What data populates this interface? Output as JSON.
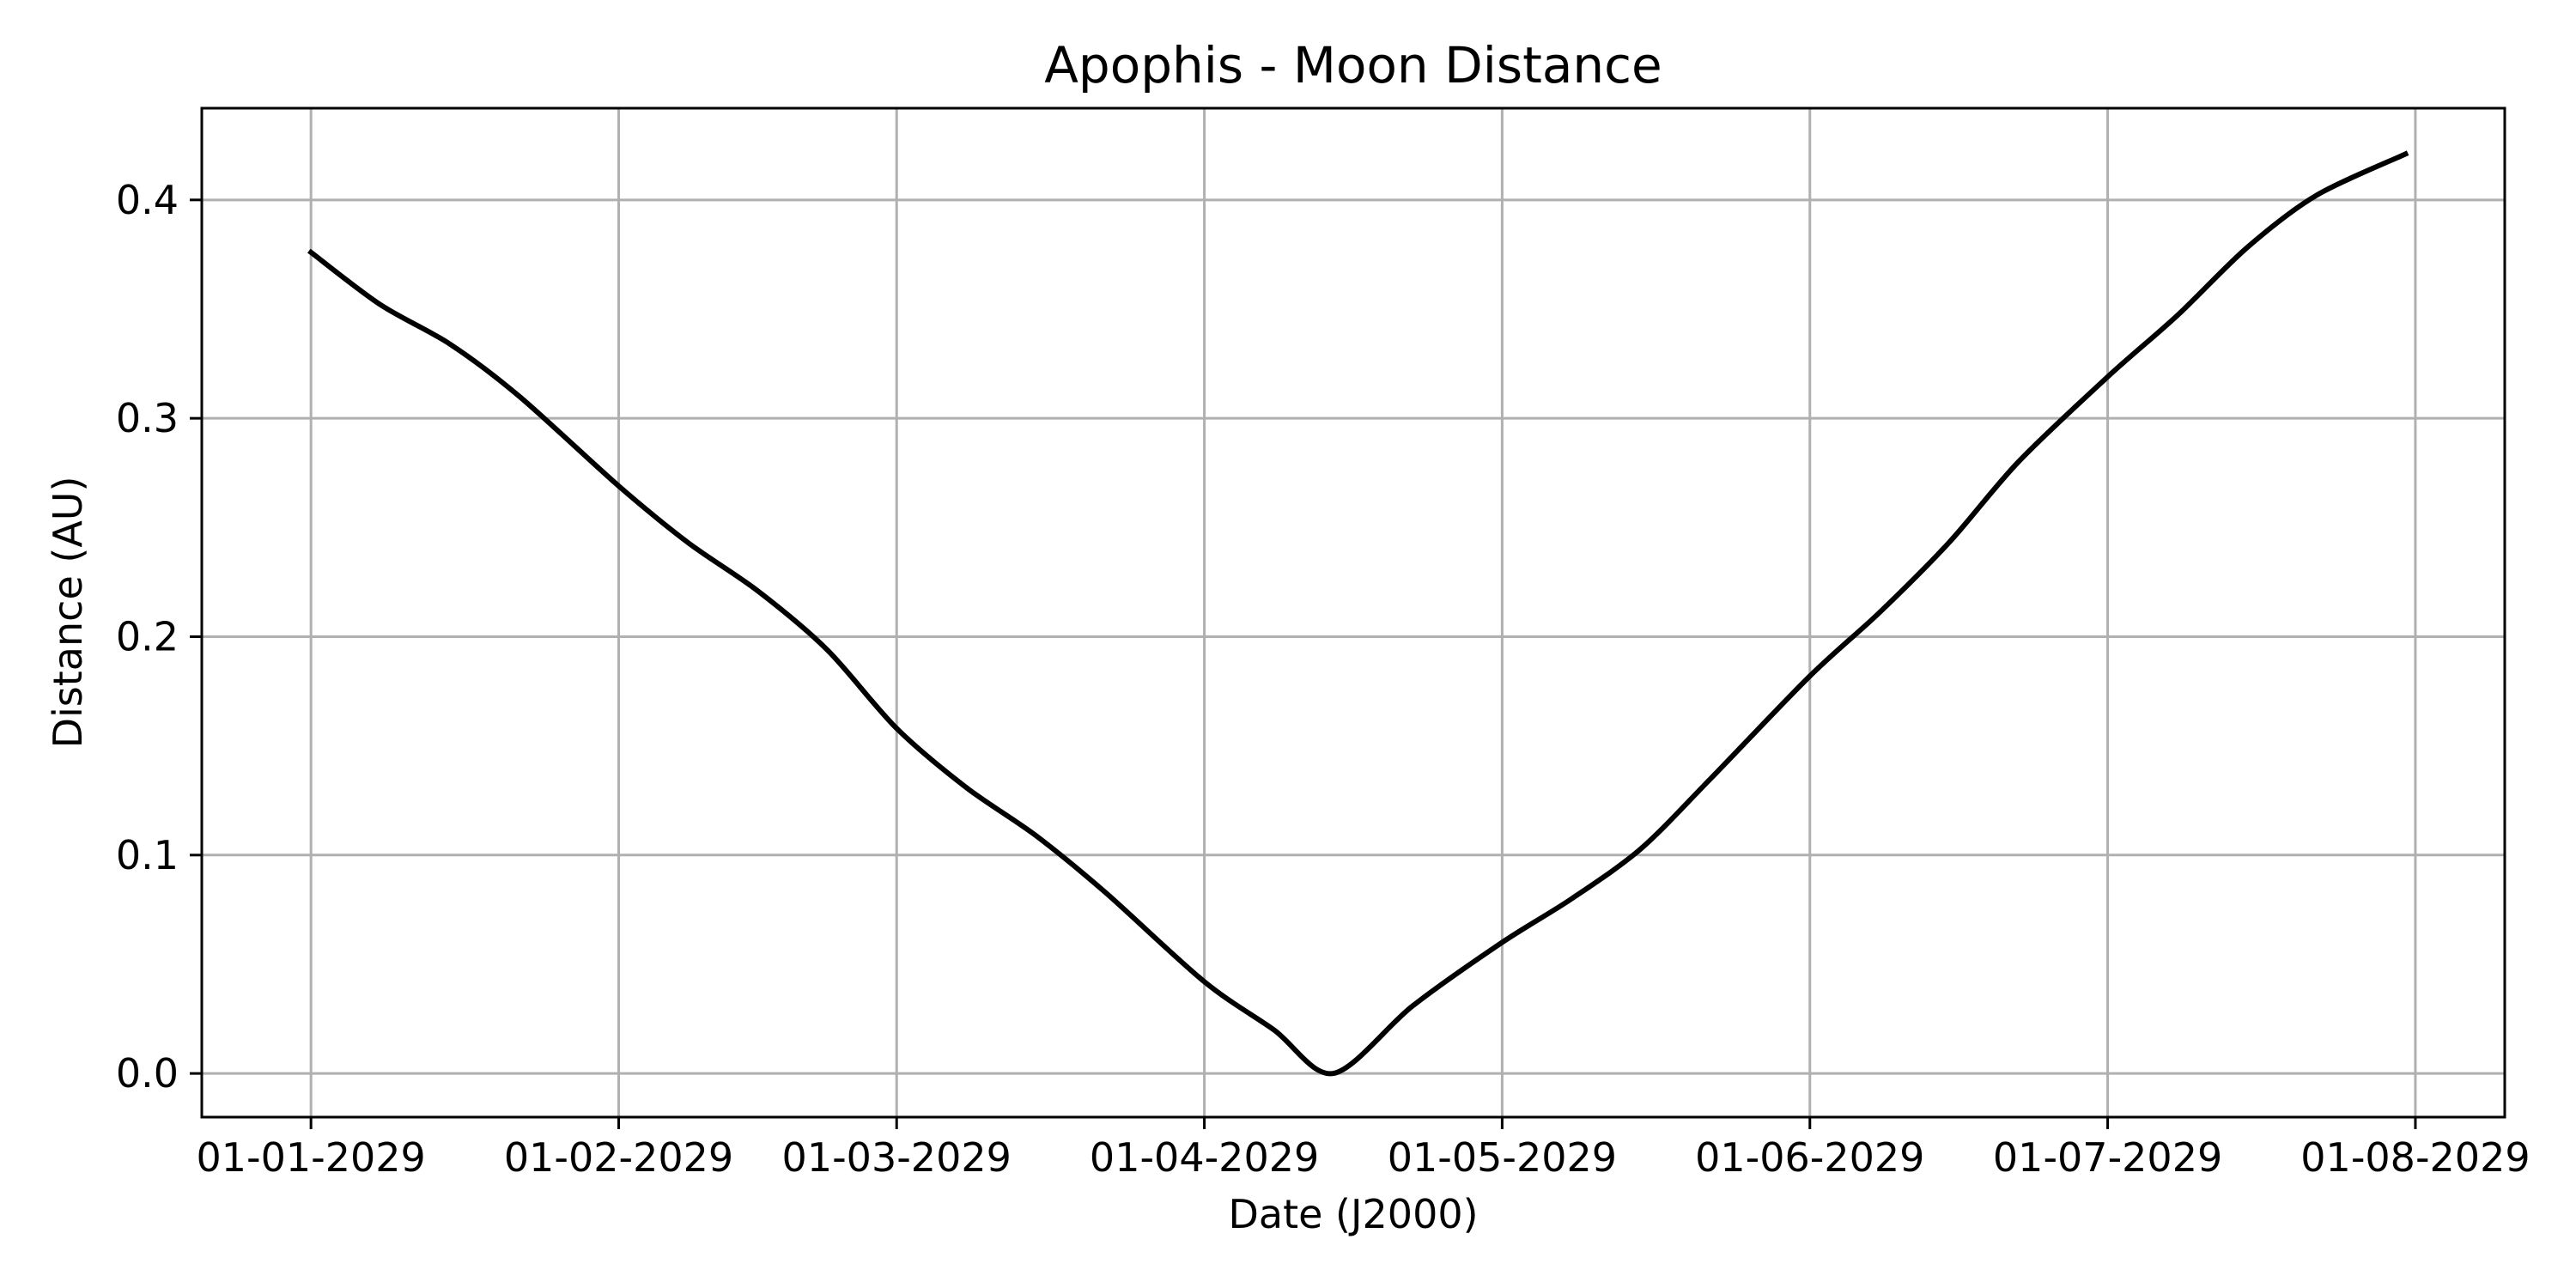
{
  "chart_data": {
    "type": "line",
    "title": "Apophis - Moon Distance",
    "xlabel": "Date (J2000)",
    "ylabel": "Distance (AU)",
    "xlim": [
      "2028-12-21",
      "2029-08-10"
    ],
    "ylim": [
      -0.02,
      0.442
    ],
    "grid": true,
    "x_ticks": [
      {
        "date": "2029-01-01",
        "label": "01-01-2029"
      },
      {
        "date": "2029-02-01",
        "label": "01-02-2029"
      },
      {
        "date": "2029-03-01",
        "label": "01-03-2029"
      },
      {
        "date": "2029-04-01",
        "label": "01-04-2029"
      },
      {
        "date": "2029-05-01",
        "label": "01-05-2029"
      },
      {
        "date": "2029-06-01",
        "label": "01-06-2029"
      },
      {
        "date": "2029-07-01",
        "label": "01-07-2029"
      },
      {
        "date": "2029-08-01",
        "label": "01-08-2029"
      }
    ],
    "y_ticks": [
      {
        "value": 0.0,
        "label": "0.0"
      },
      {
        "value": 0.1,
        "label": "0.1"
      },
      {
        "value": 0.2,
        "label": "0.2"
      },
      {
        "value": 0.3,
        "label": "0.3"
      },
      {
        "value": 0.4,
        "label": "0.4"
      }
    ],
    "series": [
      {
        "color": "#000000",
        "x": [
          "2029-01-01",
          "2029-01-08",
          "2029-01-15",
          "2029-01-22",
          "2029-02-01",
          "2029-02-08",
          "2029-02-15",
          "2029-02-22",
          "2029-03-01",
          "2029-03-08",
          "2029-03-15",
          "2029-03-22",
          "2029-04-01",
          "2029-04-08",
          "2029-04-14",
          "2029-04-22",
          "2029-05-01",
          "2029-05-08",
          "2029-05-15",
          "2029-05-22",
          "2029-06-01",
          "2029-06-08",
          "2029-06-15",
          "2029-06-22",
          "2029-07-01",
          "2029-07-08",
          "2029-07-15",
          "2029-07-22",
          "2029-07-31"
        ],
        "values": [
          0.376,
          0.352,
          0.334,
          0.31,
          0.269,
          0.243,
          0.221,
          0.194,
          0.158,
          0.131,
          0.109,
          0.083,
          0.042,
          0.02,
          0.0,
          0.031,
          0.06,
          0.08,
          0.103,
          0.135,
          0.182,
          0.211,
          0.243,
          0.28,
          0.319,
          0.347,
          0.378,
          0.402,
          0.421
        ]
      }
    ]
  }
}
